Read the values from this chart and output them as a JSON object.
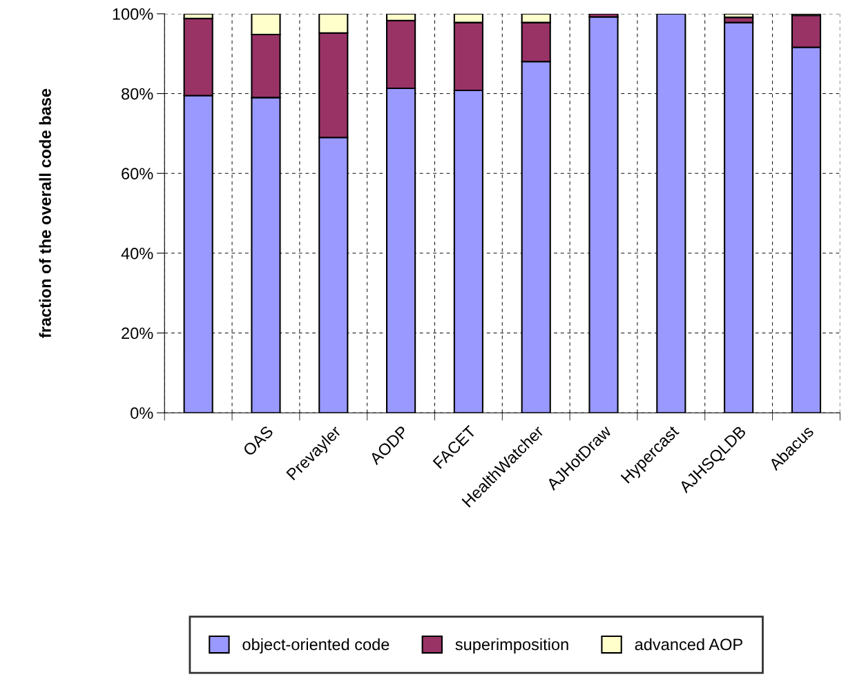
{
  "chart_data": {
    "type": "bar",
    "stacked": true,
    "ylabel": "fraction of the overall code base",
    "categories": [
      null,
      "OAS",
      "Prevayler",
      "AODP",
      "FACET",
      "HealthWatcher",
      "AJHotDraw",
      "Hypercast",
      "AJHSQLDB",
      "Abacus"
    ],
    "series": [
      {
        "name": "object-oriented code",
        "color": "#9999ff",
        "values": [
          79.5,
          79,
          69,
          81.3,
          80.8,
          88,
          99.2,
          100,
          97.8,
          91.6
        ]
      },
      {
        "name": "superimposition",
        "color": "#993366",
        "values": [
          19.3,
          15.8,
          26.2,
          17,
          17,
          9.8,
          0.8,
          null,
          1.3,
          8
        ]
      },
      {
        "name": "advanced AOP",
        "color": "#ffffcc",
        "values": [
          1.2,
          5.2,
          4.8,
          1.7,
          2.2,
          2.2,
          null,
          null,
          0.9,
          0.4
        ]
      }
    ],
    "ylim": [
      0,
      100
    ],
    "yticks": [
      {
        "value": 0,
        "label": "0%"
      },
      {
        "value": 20,
        "label": "20%"
      },
      {
        "value": 40,
        "label": "40%"
      },
      {
        "value": 60,
        "label": "60%"
      },
      {
        "value": 80,
        "label": "80%"
      },
      {
        "value": 100,
        "label": "100%"
      }
    ],
    "grid": true,
    "legend": "bottom"
  }
}
